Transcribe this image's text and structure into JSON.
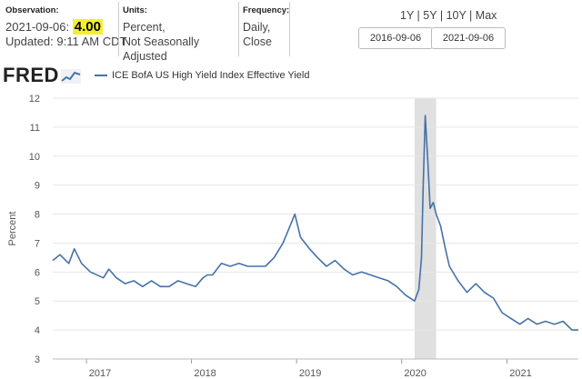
{
  "header": {
    "observation": {
      "label": "Observation:",
      "date": "2021-09-06:",
      "value": "4.00",
      "updated": "Updated: 9:11 AM CDT"
    },
    "units": {
      "label": "Units:",
      "line1": "Percent,",
      "line2": "Not Seasonally Adjusted"
    },
    "frequency": {
      "label": "Frequency:",
      "line1": "Daily,",
      "line2": "Close"
    },
    "ranges": [
      "1Y",
      "5Y",
      "10Y",
      "Max"
    ],
    "start_date": "2016-09-06",
    "end_date": "2021-09-06"
  },
  "logo": "FRED",
  "chart_data": {
    "type": "line",
    "title": "",
    "xlabel": "",
    "ylabel": "Percent",
    "ylim": [
      3,
      12
    ],
    "xlim": [
      "2016-09-06",
      "2021-09-06"
    ],
    "yticks": [
      3,
      4,
      5,
      6,
      7,
      8,
      9,
      10,
      11,
      12
    ],
    "xticks": [
      "2017",
      "2018",
      "2019",
      "2020",
      "2021"
    ],
    "grid": "horizontal",
    "recession_shading": [
      [
        "2020-02-15",
        "2020-04-30"
      ]
    ],
    "colors": {
      "series": "#4572a7",
      "recession": "#e0e0e0",
      "grid": "#e6e6e6"
    },
    "series": [
      {
        "name": "ICE BofA US High Yield Index Effective Yield",
        "x": [
          "2016-09-06",
          "2016-10-01",
          "2016-11-01",
          "2016-11-20",
          "2016-12-15",
          "2017-01-15",
          "2017-03-01",
          "2017-03-20",
          "2017-04-15",
          "2017-05-15",
          "2017-06-15",
          "2017-07-15",
          "2017-08-15",
          "2017-09-15",
          "2017-10-15",
          "2017-11-15",
          "2017-12-15",
          "2018-01-15",
          "2018-02-10",
          "2018-02-25",
          "2018-03-15",
          "2018-04-15",
          "2018-05-15",
          "2018-06-15",
          "2018-07-15",
          "2018-08-15",
          "2018-09-15",
          "2018-10-15",
          "2018-11-15",
          "2018-12-10",
          "2018-12-26",
          "2019-01-15",
          "2019-02-15",
          "2019-03-15",
          "2019-04-15",
          "2019-05-15",
          "2019-06-15",
          "2019-07-15",
          "2019-08-15",
          "2019-09-15",
          "2019-10-15",
          "2019-11-15",
          "2019-12-15",
          "2020-01-15",
          "2020-02-15",
          "2020-03-01",
          "2020-03-10",
          "2020-03-16",
          "2020-03-23",
          "2020-04-01",
          "2020-04-09",
          "2020-04-20",
          "2020-04-30",
          "2020-05-15",
          "2020-06-01",
          "2020-06-15",
          "2020-07-15",
          "2020-08-15",
          "2020-09-15",
          "2020-10-15",
          "2020-11-15",
          "2020-12-15",
          "2021-01-15",
          "2021-02-15",
          "2021-03-15",
          "2021-04-15",
          "2021-05-15",
          "2021-06-15",
          "2021-07-15",
          "2021-08-15",
          "2021-09-06"
        ],
        "values": [
          6.4,
          6.6,
          6.3,
          6.8,
          6.3,
          6.0,
          5.8,
          6.1,
          5.8,
          5.6,
          5.7,
          5.5,
          5.7,
          5.5,
          5.5,
          5.7,
          5.6,
          5.5,
          5.8,
          5.9,
          5.9,
          6.3,
          6.2,
          6.3,
          6.2,
          6.2,
          6.2,
          6.5,
          7.0,
          7.6,
          8.0,
          7.2,
          6.8,
          6.5,
          6.2,
          6.4,
          6.1,
          5.9,
          6.0,
          5.9,
          5.8,
          5.7,
          5.5,
          5.2,
          5.0,
          5.4,
          6.5,
          9.0,
          11.4,
          9.8,
          8.2,
          8.4,
          8.0,
          7.6,
          6.8,
          6.2,
          5.7,
          5.3,
          5.6,
          5.3,
          5.1,
          4.6,
          4.4,
          4.2,
          4.4,
          4.2,
          4.3,
          4.2,
          4.3,
          4.0,
          4.0
        ]
      }
    ]
  }
}
